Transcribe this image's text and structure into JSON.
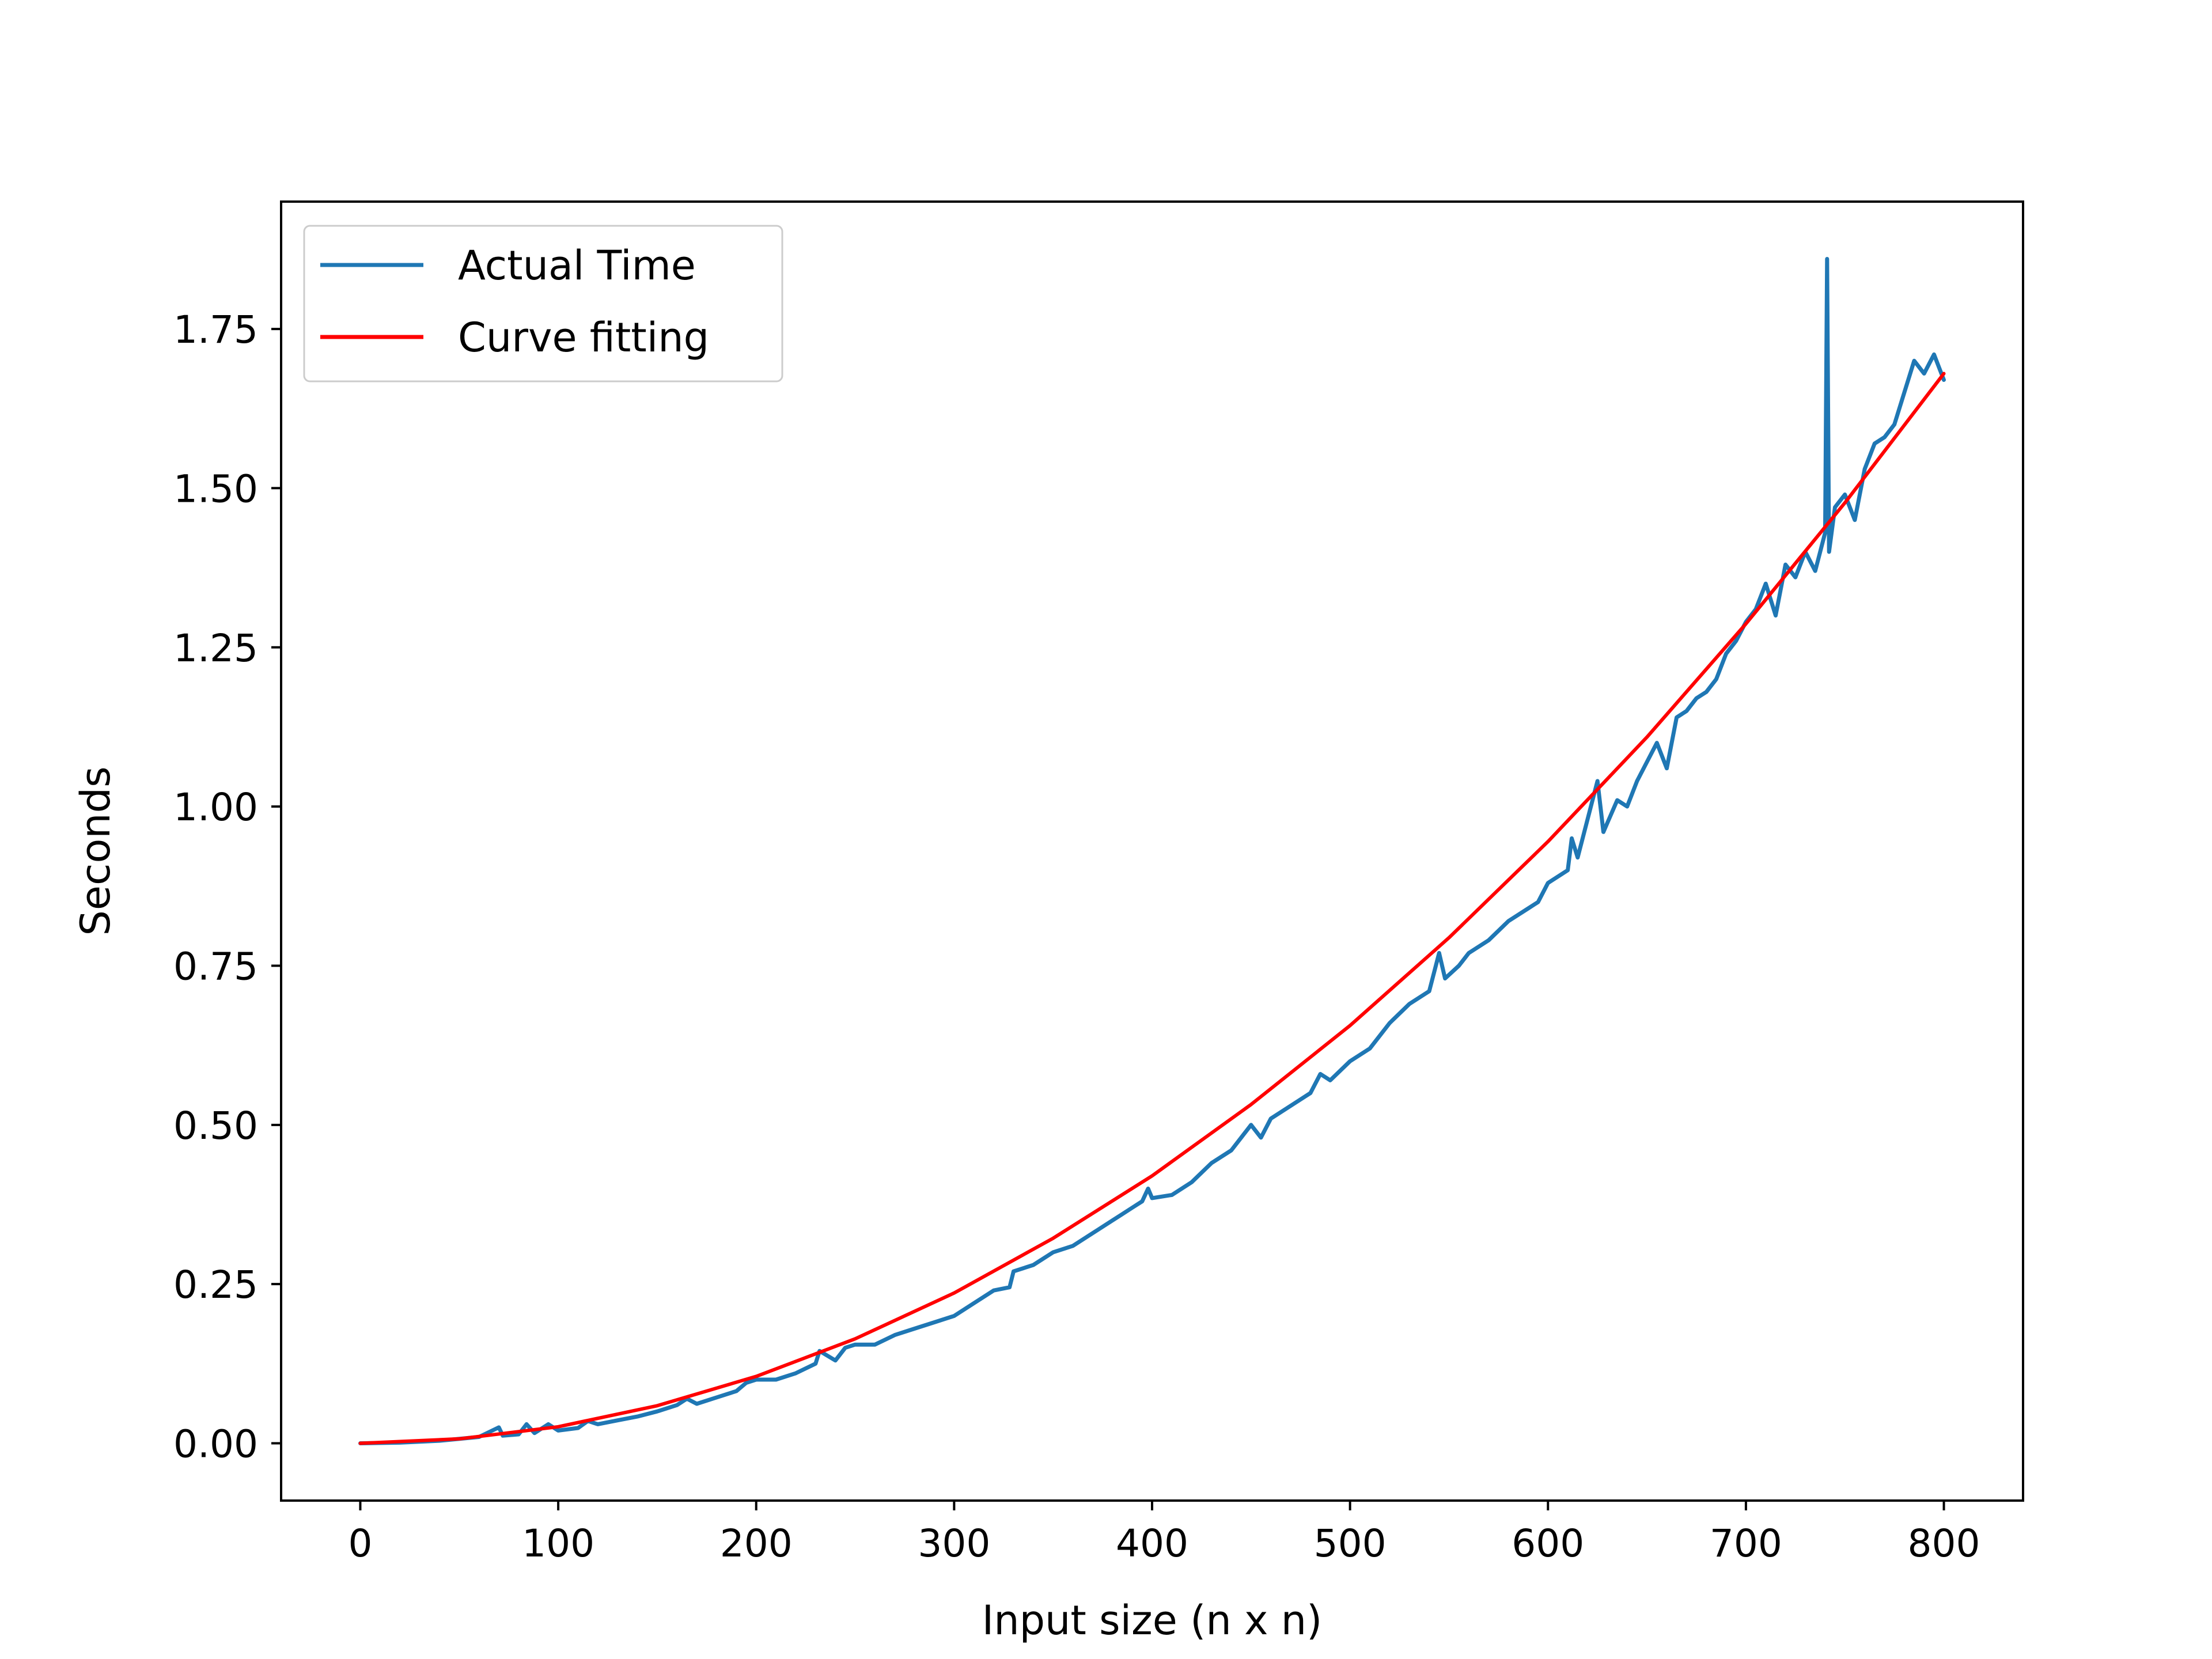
{
  "chart_data": {
    "type": "line",
    "title": "",
    "xlabel": "Input size (n x n)",
    "ylabel": "Seconds",
    "xlim": [
      -40,
      840
    ],
    "ylim": [
      -0.09,
      1.95
    ],
    "grid": false,
    "legend_position": "top-left",
    "x_ticks": [
      {
        "value": 0,
        "label": "0"
      },
      {
        "value": 100,
        "label": "100"
      },
      {
        "value": 200,
        "label": "200"
      },
      {
        "value": 300,
        "label": "300"
      },
      {
        "value": 400,
        "label": "400"
      },
      {
        "value": 500,
        "label": "500"
      },
      {
        "value": 600,
        "label": "600"
      },
      {
        "value": 700,
        "label": "700"
      },
      {
        "value": 800,
        "label": "800"
      }
    ],
    "y_ticks": [
      {
        "value": 0.0,
        "label": "0.00"
      },
      {
        "value": 0.25,
        "label": "0.25"
      },
      {
        "value": 0.5,
        "label": "0.50"
      },
      {
        "value": 0.75,
        "label": "0.75"
      },
      {
        "value": 1.0,
        "label": "1.00"
      },
      {
        "value": 1.25,
        "label": "1.25"
      },
      {
        "value": 1.5,
        "label": "1.50"
      },
      {
        "value": 1.75,
        "label": "1.75"
      }
    ],
    "series": [
      {
        "name": "Actual Time",
        "color": "#1f77b4",
        "points": [
          [
            0,
            0.0
          ],
          [
            20,
            0.001
          ],
          [
            40,
            0.004
          ],
          [
            60,
            0.01
          ],
          [
            70,
            0.025
          ],
          [
            72,
            0.012
          ],
          [
            80,
            0.014
          ],
          [
            84,
            0.03
          ],
          [
            88,
            0.016
          ],
          [
            95,
            0.03
          ],
          [
            100,
            0.02
          ],
          [
            110,
            0.024
          ],
          [
            115,
            0.035
          ],
          [
            120,
            0.03
          ],
          [
            130,
            0.036
          ],
          [
            140,
            0.042
          ],
          [
            150,
            0.05
          ],
          [
            160,
            0.06
          ],
          [
            165,
            0.07
          ],
          [
            170,
            0.062
          ],
          [
            180,
            0.072
          ],
          [
            190,
            0.082
          ],
          [
            195,
            0.095
          ],
          [
            200,
            0.1
          ],
          [
            210,
            0.1
          ],
          [
            220,
            0.11
          ],
          [
            230,
            0.125
          ],
          [
            232,
            0.145
          ],
          [
            240,
            0.13
          ],
          [
            245,
            0.15
          ],
          [
            250,
            0.155
          ],
          [
            260,
            0.155
          ],
          [
            270,
            0.17
          ],
          [
            280,
            0.18
          ],
          [
            290,
            0.19
          ],
          [
            300,
            0.2
          ],
          [
            310,
            0.22
          ],
          [
            320,
            0.24
          ],
          [
            328,
            0.245
          ],
          [
            330,
            0.27
          ],
          [
            340,
            0.28
          ],
          [
            350,
            0.3
          ],
          [
            360,
            0.31
          ],
          [
            370,
            0.33
          ],
          [
            380,
            0.35
          ],
          [
            385,
            0.36
          ],
          [
            390,
            0.37
          ],
          [
            395,
            0.38
          ],
          [
            398,
            0.4
          ],
          [
            400,
            0.385
          ],
          [
            410,
            0.39
          ],
          [
            420,
            0.41
          ],
          [
            430,
            0.44
          ],
          [
            440,
            0.46
          ],
          [
            450,
            0.5
          ],
          [
            455,
            0.48
          ],
          [
            460,
            0.51
          ],
          [
            470,
            0.53
          ],
          [
            480,
            0.55
          ],
          [
            485,
            0.58
          ],
          [
            490,
            0.57
          ],
          [
            500,
            0.6
          ],
          [
            510,
            0.62
          ],
          [
            520,
            0.66
          ],
          [
            530,
            0.69
          ],
          [
            540,
            0.71
          ],
          [
            545,
            0.77
          ],
          [
            548,
            0.73
          ],
          [
            555,
            0.75
          ],
          [
            560,
            0.77
          ],
          [
            570,
            0.79
          ],
          [
            580,
            0.82
          ],
          [
            590,
            0.84
          ],
          [
            595,
            0.85
          ],
          [
            600,
            0.88
          ],
          [
            610,
            0.9
          ],
          [
            612,
            0.95
          ],
          [
            615,
            0.92
          ],
          [
            620,
            0.98
          ],
          [
            625,
            1.04
          ],
          [
            628,
            0.96
          ],
          [
            635,
            1.01
          ],
          [
            640,
            1.0
          ],
          [
            645,
            1.04
          ],
          [
            650,
            1.07
          ],
          [
            655,
            1.1
          ],
          [
            660,
            1.06
          ],
          [
            665,
            1.14
          ],
          [
            670,
            1.15
          ],
          [
            675,
            1.17
          ],
          [
            680,
            1.18
          ],
          [
            685,
            1.2
          ],
          [
            690,
            1.24
          ],
          [
            695,
            1.26
          ],
          [
            700,
            1.29
          ],
          [
            705,
            1.31
          ],
          [
            710,
            1.35
          ],
          [
            715,
            1.3
          ],
          [
            720,
            1.38
          ],
          [
            725,
            1.36
          ],
          [
            730,
            1.4
          ],
          [
            735,
            1.37
          ],
          [
            740,
            1.43
          ],
          [
            741,
            1.86
          ],
          [
            742,
            1.4
          ],
          [
            745,
            1.47
          ],
          [
            750,
            1.49
          ],
          [
            755,
            1.45
          ],
          [
            760,
            1.53
          ],
          [
            765,
            1.57
          ],
          [
            770,
            1.58
          ],
          [
            775,
            1.6
          ],
          [
            780,
            1.65
          ],
          [
            785,
            1.7
          ],
          [
            790,
            1.68
          ],
          [
            795,
            1.71
          ],
          [
            800,
            1.67
          ]
        ]
      },
      {
        "name": "Curve fitting",
        "color": "#ff0000",
        "points": [
          [
            0,
            0.0
          ],
          [
            50,
            0.007
          ],
          [
            100,
            0.026
          ],
          [
            150,
            0.059
          ],
          [
            200,
            0.105
          ],
          [
            250,
            0.164
          ],
          [
            300,
            0.236
          ],
          [
            350,
            0.322
          ],
          [
            400,
            0.42
          ],
          [
            450,
            0.532
          ],
          [
            500,
            0.656
          ],
          [
            550,
            0.794
          ],
          [
            600,
            0.945
          ],
          [
            650,
            1.109
          ],
          [
            700,
            1.287
          ],
          [
            750,
            1.477
          ],
          [
            800,
            1.68
          ]
        ]
      }
    ]
  }
}
